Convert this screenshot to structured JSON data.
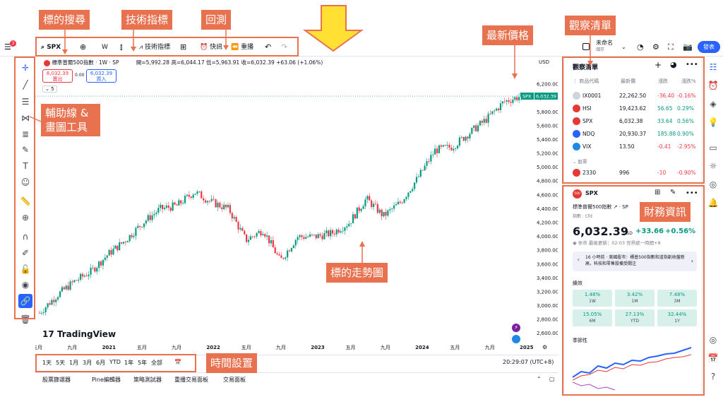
{
  "topbar": {
    "menu_badge": "3",
    "symbol": "SPX",
    "interval": "W",
    "indicators_label": "技術指標",
    "alert_label": "快訊",
    "replay_label": "重播",
    "layout_name": "未命名",
    "layout_sub": "儲存",
    "publish_label": "發表"
  },
  "legend": {
    "title": "標準普爾500指數 · 1W · SP",
    "ohlc": "開=5,992.28  高=6,044.17  低=5,963.91  收=6,032.39 +63.06 (+1.06%)",
    "sell_price": "6,032.39",
    "sell_label": "賣出",
    "spread": "0.00",
    "buy_price": "6,032.39",
    "buy_label": "買入",
    "collapse_count": "5"
  },
  "chart_data": {
    "type": "line",
    "title": "",
    "xlabel": "",
    "ylabel": "",
    "currency": "USD",
    "ylim": [
      2500,
      6400
    ],
    "y_ticks": [
      "6,200.00",
      "6,000.00",
      "5,800.00",
      "5,600.00",
      "5,400.00",
      "5,200.00",
      "5,000.00",
      "4,800.00",
      "4,600.00",
      "4,400.00",
      "4,200.00",
      "4,000.00",
      "3,800.00",
      "3,600.00",
      "3,400.00",
      "3,200.00",
      "3,000.00",
      "2,800.00",
      "2,600.00"
    ],
    "x_ticks": [
      "五月",
      "九月",
      "2021",
      "五月",
      "九月",
      "2022",
      "五月",
      "九月",
      "2023",
      "五月",
      "九月",
      "2024",
      "五月",
      "九月",
      "2025"
    ],
    "last_price_label": "6,032.39",
    "symbol_tag": "SPX",
    "series": [
      {
        "name": "SPX",
        "x": [
          "2020-05",
          "2020-07",
          "2020-09",
          "2020-11",
          "2021-01",
          "2021-03",
          "2021-05",
          "2021-07",
          "2021-09",
          "2021-11",
          "2022-01",
          "2022-03",
          "2022-05",
          "2022-07",
          "2022-09",
          "2022-11",
          "2023-01",
          "2023-03",
          "2023-05",
          "2023-07",
          "2023-09",
          "2023-11",
          "2024-01",
          "2024-03",
          "2024-05",
          "2024-07",
          "2024-09",
          "2024-11",
          "2025-01"
        ],
        "values": [
          2900,
          3150,
          3350,
          3500,
          3750,
          3950,
          4200,
          4400,
          4450,
          4650,
          4500,
          4400,
          3950,
          4100,
          3650,
          4000,
          4000,
          4050,
          4200,
          4550,
          4300,
          4500,
          4850,
          5250,
          5300,
          5500,
          5700,
          5950,
          6032
        ]
      }
    ]
  },
  "watermark": "TradingView",
  "ranges": [
    "1天",
    "5天",
    "1月",
    "3月",
    "6月",
    "YTD",
    "1年",
    "5年",
    "全部"
  ],
  "clock": "20:29:07 (UTC+8)",
  "bottom_tabs": [
    "股票篩選器",
    "Pine編輯器",
    "策略測試器",
    "重播交易面板",
    "交易面板"
  ],
  "watchlist": {
    "title": "觀察清單",
    "headers": [
      "商品代碼",
      "最新價",
      "漲跌",
      "漲跌%"
    ],
    "rows": [
      {
        "symbol": "IX0001",
        "last": "22,262.50",
        "chg": "-36.40",
        "pct": "-0.16%",
        "dir": "neg",
        "color": "#d1d4dc"
      },
      {
        "symbol": "HSI",
        "last": "19,423.62",
        "chg": "56.65",
        "pct": "0.29%",
        "dir": "pos",
        "color": "#e53935"
      },
      {
        "symbol": "SPX",
        "last": "6,032.38",
        "chg": "33.64",
        "pct": "0.56%",
        "dir": "pos",
        "color": "#e53935"
      },
      {
        "symbol": "NDQ",
        "last": "20,930.37",
        "chg": "185.88",
        "pct": "0.90%",
        "dir": "pos",
        "color": "#2962ff"
      },
      {
        "symbol": "VIX",
        "last": "13.50",
        "chg": "-0.41",
        "pct": "-2.95%",
        "dir": "neg",
        "color": "#1e88e5"
      }
    ],
    "group_label": "股票",
    "group_rows": [
      {
        "symbol": "2330",
        "last": "996",
        "chg": "-10",
        "pct": "-0.90%",
        "dir": "neg",
        "color": "#e53935"
      }
    ]
  },
  "details": {
    "symbol": "SPX",
    "name": "標準普爾500指數",
    "exchange": "SP",
    "type": "指數 · Cfd",
    "price": "6,032.39",
    "currency": "USD",
    "change": "+33.66",
    "change_pct": "+0.56%",
    "status": "休市",
    "updated": "最後更新：02:03 世界統一時間+8",
    "news": "16 小時前 · 美國股市：標普500指數和道指創收盤新高，科技和零售股備受關注",
    "performance_title": "績效",
    "performance": [
      {
        "value": "1.48%",
        "period": "1W"
      },
      {
        "value": "3.42%",
        "period": "1M"
      },
      {
        "value": "7.48%",
        "period": "3M"
      },
      {
        "value": "15.05%",
        "period": "6M"
      },
      {
        "value": "27.13%",
        "period": "YTD"
      },
      {
        "value": "32.44%",
        "period": "1Y"
      }
    ],
    "seasonality_title": "季節性"
  },
  "annotations": {
    "search": "標的搜尋",
    "indicators": "技術指標",
    "backtest": "回測",
    "last_price": "最新價格",
    "watchlist": "觀察清單",
    "drawing_tools": "輔助線 & 畫圖工具",
    "financials": "財務資訊",
    "trend": "標的走勢圖",
    "time_settings": "時間設置"
  },
  "colors": {
    "up": "#089981",
    "down": "#f23645",
    "accent": "#2962ff",
    "annotation": "#e8714f",
    "arrow": "#ffe033"
  }
}
